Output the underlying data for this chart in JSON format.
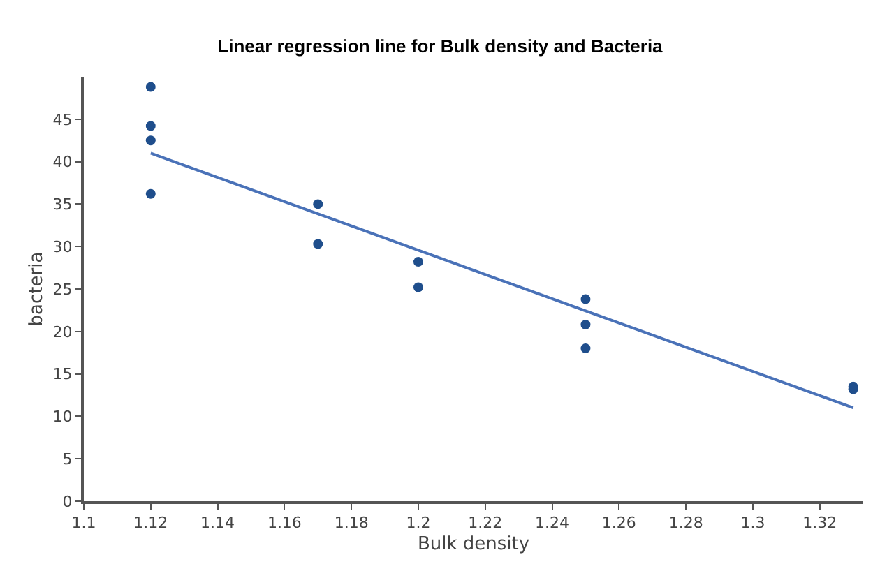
{
  "chart_data": {
    "type": "scatter",
    "title": "Linear regression line for Bulk density and Bacteria",
    "xlabel": "Bulk density",
    "ylabel": "bacteria",
    "series": [
      {
        "marker": "circle",
        "color": "#1f4e8c",
        "x": [
          1.12,
          1.12,
          1.12,
          1.12,
          1.17,
          1.17,
          1.2,
          1.2,
          1.25,
          1.25,
          1.25,
          1.33,
          1.33
        ],
        "values": [
          48.8,
          44.2,
          42.5,
          36.2,
          35,
          30.3,
          28.2,
          25.2,
          23.8,
          20.8,
          18,
          13.5,
          13.2
        ]
      },
      {
        "type": "line",
        "color": "#4a72b8",
        "x": [
          1.12,
          1.33
        ],
        "values": [
          41,
          11
        ]
      }
    ],
    "xlim": [
      1.1,
      1.333
    ],
    "xticks": [
      1.1,
      1.12,
      1.14,
      1.16,
      1.18,
      1.2,
      1.22,
      1.24,
      1.26,
      1.28,
      1.3,
      1.32
    ],
    "ylim": [
      0,
      50
    ],
    "yticks": [
      0,
      5,
      10,
      15,
      20,
      25,
      30,
      35,
      40,
      45
    ]
  }
}
